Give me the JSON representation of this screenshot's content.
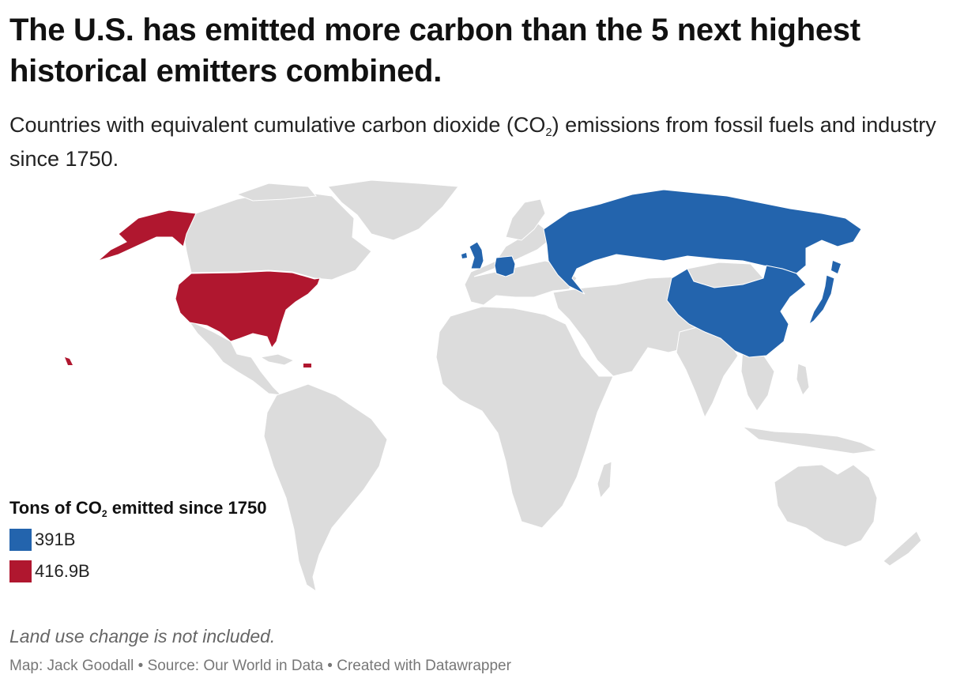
{
  "header": {
    "title": "The U.S. has emitted more carbon than the 5 next highest historical emitters combined.",
    "subtitle_before": "Countries with equivalent cumulative carbon dioxide (CO",
    "subtitle_sub": "2",
    "subtitle_after": ") emissions from fossil fuels and industry since 1750."
  },
  "colors": {
    "land": "#dcdcdc",
    "blue": "#2364ad",
    "red": "#b0172f"
  },
  "legend": {
    "title_before": "Tons of CO",
    "title_sub": "2",
    "title_after": " emitted since 1750",
    "items": [
      {
        "label": "391B",
        "color": "#2364ad"
      },
      {
        "label": "416.9B",
        "color": "#b0172f"
      }
    ]
  },
  "map": {
    "highlighted": {
      "blue": [
        "Russia",
        "China",
        "Germany",
        "United Kingdom",
        "Japan"
      ],
      "red": [
        "United States"
      ]
    }
  },
  "footer": {
    "notes": "Land use change is not included.",
    "byline": "Map: Jack Goodall • Source: Our World in Data • Created with Datawrapper"
  }
}
